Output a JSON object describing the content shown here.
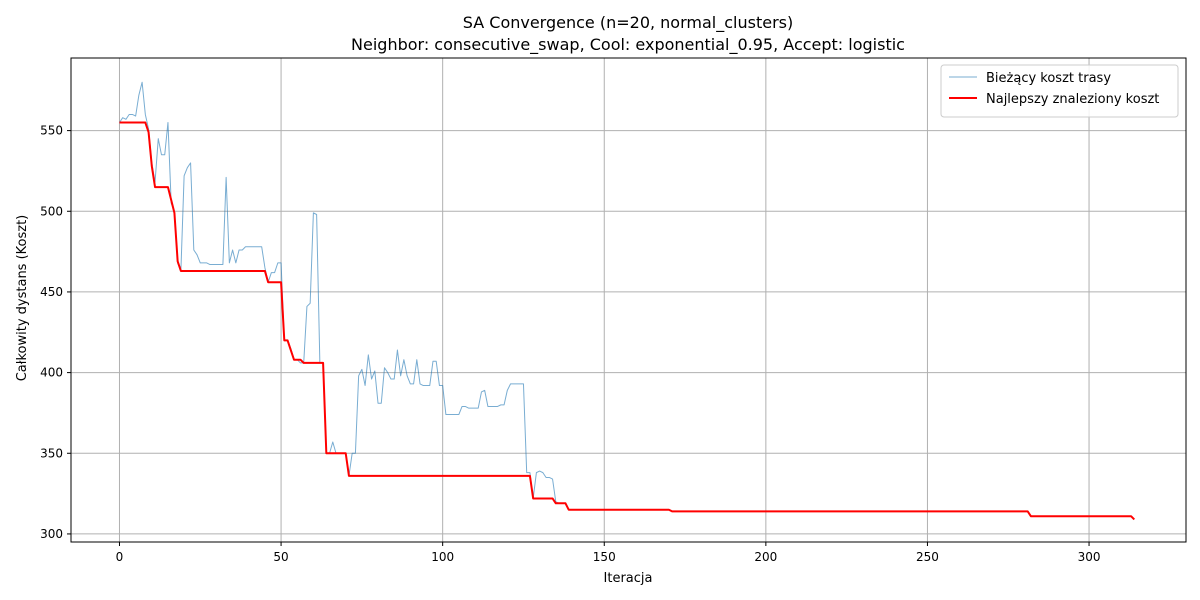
{
  "chart_data": {
    "type": "line",
    "title": "SA Convergence (n=20, normal_clusters)",
    "subtitle": "Neighbor: consecutive_swap, Cool: exponential_0.95, Accept: logistic",
    "xlabel": "Iteracja",
    "ylabel": "Całkowity dystans (Koszt)",
    "xlim": [
      -15,
      330
    ],
    "ylim": [
      295,
      595
    ],
    "xticks": [
      0,
      50,
      100,
      150,
      200,
      250,
      300
    ],
    "yticks": [
      300,
      350,
      400,
      450,
      500,
      550
    ],
    "grid": true,
    "legend_position": "top-right",
    "series": [
      {
        "name": "Bieżący koszt trasy",
        "color": "#1f77b4",
        "points": [
          [
            0,
            555
          ],
          [
            1,
            558
          ],
          [
            2,
            557
          ],
          [
            3,
            560
          ],
          [
            4,
            560
          ],
          [
            5,
            559
          ],
          [
            6,
            572
          ],
          [
            7,
            580
          ],
          [
            8,
            560
          ],
          [
            9,
            551
          ],
          [
            10,
            530
          ],
          [
            11,
            518
          ],
          [
            12,
            545
          ],
          [
            13,
            535
          ],
          [
            14,
            535
          ],
          [
            15,
            555
          ],
          [
            16,
            505
          ],
          [
            17,
            500
          ],
          [
            18,
            468
          ],
          [
            19,
            463
          ],
          [
            20,
            522
          ],
          [
            21,
            527
          ],
          [
            22,
            530
          ],
          [
            23,
            476
          ],
          [
            24,
            473
          ],
          [
            25,
            468
          ],
          [
            26,
            468
          ],
          [
            27,
            468
          ],
          [
            28,
            467
          ],
          [
            29,
            467
          ],
          [
            30,
            467
          ],
          [
            31,
            467
          ],
          [
            32,
            467
          ],
          [
            33,
            521
          ],
          [
            34,
            468
          ],
          [
            35,
            476
          ],
          [
            36,
            468
          ],
          [
            37,
            476
          ],
          [
            38,
            476
          ],
          [
            39,
            478
          ],
          [
            40,
            478
          ],
          [
            41,
            478
          ],
          [
            42,
            478
          ],
          [
            43,
            478
          ],
          [
            44,
            478
          ],
          [
            45,
            465
          ],
          [
            46,
            456
          ],
          [
            47,
            462
          ],
          [
            48,
            462
          ],
          [
            49,
            468
          ],
          [
            50,
            468
          ],
          [
            51,
            420
          ],
          [
            52,
            420
          ],
          [
            53,
            415
          ],
          [
            54,
            408
          ],
          [
            55,
            408
          ],
          [
            56,
            406
          ],
          [
            57,
            406
          ],
          [
            58,
            441
          ],
          [
            59,
            443
          ],
          [
            60,
            499
          ],
          [
            61,
            498
          ],
          [
            62,
            406
          ],
          [
            63,
            406
          ],
          [
            64,
            350
          ],
          [
            65,
            350
          ],
          [
            66,
            357
          ],
          [
            67,
            350
          ],
          [
            68,
            350
          ],
          [
            69,
            350
          ],
          [
            70,
            350
          ],
          [
            71,
            336
          ],
          [
            72,
            350
          ],
          [
            73,
            350
          ],
          [
            74,
            398
          ],
          [
            75,
            402
          ],
          [
            76,
            392
          ],
          [
            77,
            411
          ],
          [
            78,
            396
          ],
          [
            79,
            401
          ],
          [
            80,
            381
          ],
          [
            81,
            381
          ],
          [
            82,
            403
          ],
          [
            83,
            400
          ],
          [
            84,
            396
          ],
          [
            85,
            396
          ],
          [
            86,
            414
          ],
          [
            87,
            398
          ],
          [
            88,
            408
          ],
          [
            89,
            398
          ],
          [
            90,
            393
          ],
          [
            91,
            393
          ],
          [
            92,
            408
          ],
          [
            93,
            393
          ],
          [
            94,
            392
          ],
          [
            95,
            392
          ],
          [
            96,
            392
          ],
          [
            97,
            407
          ],
          [
            98,
            407
          ],
          [
            99,
            392
          ],
          [
            100,
            392
          ],
          [
            101,
            374
          ],
          [
            102,
            374
          ],
          [
            103,
            374
          ],
          [
            104,
            374
          ],
          [
            105,
            374
          ],
          [
            106,
            379
          ],
          [
            107,
            379
          ],
          [
            108,
            378
          ],
          [
            109,
            378
          ],
          [
            110,
            378
          ],
          [
            111,
            378
          ],
          [
            112,
            388
          ],
          [
            113,
            389
          ],
          [
            114,
            379
          ],
          [
            115,
            379
          ],
          [
            116,
            379
          ],
          [
            117,
            379
          ],
          [
            118,
            380
          ],
          [
            119,
            380
          ],
          [
            120,
            389
          ],
          [
            121,
            393
          ],
          [
            122,
            393
          ],
          [
            123,
            393
          ],
          [
            124,
            393
          ],
          [
            125,
            393
          ],
          [
            126,
            338
          ],
          [
            127,
            338
          ],
          [
            128,
            322
          ],
          [
            129,
            338
          ],
          [
            130,
            339
          ],
          [
            131,
            338
          ],
          [
            132,
            335
          ],
          [
            133,
            335
          ],
          [
            134,
            334
          ],
          [
            135,
            320
          ],
          [
            136,
            319
          ],
          [
            137,
            319
          ],
          [
            138,
            319
          ],
          [
            139,
            315
          ],
          [
            140,
            315
          ],
          [
            150,
            315
          ],
          [
            160,
            315
          ],
          [
            170,
            315
          ],
          [
            171,
            314
          ],
          [
            200,
            314
          ],
          [
            250,
            314
          ],
          [
            280,
            314
          ],
          [
            281,
            314
          ],
          [
            282,
            311
          ],
          [
            300,
            311
          ],
          [
            312,
            311
          ],
          [
            313,
            311
          ],
          [
            314,
            309
          ]
        ]
      },
      {
        "name": "Najlepszy znaleziony koszt",
        "color": "#ff0000",
        "points": [
          [
            0,
            555
          ],
          [
            8,
            555
          ],
          [
            9,
            549
          ],
          [
            10,
            528
          ],
          [
            11,
            515
          ],
          [
            15,
            515
          ],
          [
            16,
            507
          ],
          [
            17,
            499
          ],
          [
            18,
            469
          ],
          [
            19,
            463
          ],
          [
            45,
            463
          ],
          [
            46,
            456
          ],
          [
            50,
            456
          ],
          [
            51,
            420
          ],
          [
            52,
            420
          ],
          [
            53,
            414
          ],
          [
            54,
            408
          ],
          [
            56,
            408
          ],
          [
            57,
            406
          ],
          [
            63,
            406
          ],
          [
            64,
            350
          ],
          [
            70,
            350
          ],
          [
            71,
            336
          ],
          [
            127,
            336
          ],
          [
            128,
            322
          ],
          [
            134,
            322
          ],
          [
            135,
            319
          ],
          [
            138,
            319
          ],
          [
            139,
            315
          ],
          [
            170,
            315
          ],
          [
            171,
            314
          ],
          [
            281,
            314
          ],
          [
            282,
            311
          ],
          [
            313,
            311
          ],
          [
            314,
            309
          ]
        ]
      }
    ]
  }
}
